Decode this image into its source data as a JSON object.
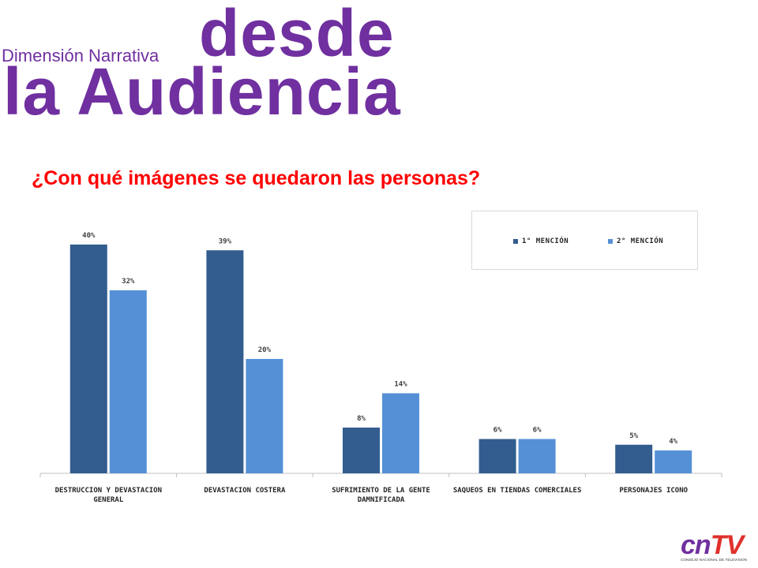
{
  "header": {
    "subtitle": "Dimensión Narrativa",
    "title_line1": "desde",
    "title_line2": "la Audiencia"
  },
  "question": "¿Con qué imágenes se quedaron las personas?",
  "colors": {
    "series1": "#335d8f",
    "series2": "#5590d6",
    "purple": "#7030a0",
    "red": "#ff0000"
  },
  "chart_data": {
    "type": "bar",
    "categories": [
      [
        "DESTRUCCION Y DEVASTACION",
        "GENERAL"
      ],
      [
        "DEVASTACION COSTERA"
      ],
      [
        "SUFRIMIENTO DE LA GENTE",
        "DAMNIFICADA"
      ],
      [
        "SAQUEOS EN TIENDAS COMERCIALES"
      ],
      [
        "PERSONAJES ICONO"
      ]
    ],
    "series": [
      {
        "name": "1° MENCIÓN",
        "values": [
          40,
          39,
          8,
          6,
          5
        ],
        "labels": [
          "40%",
          "39%",
          "8%",
          "6%",
          "5%"
        ]
      },
      {
        "name": "2° MENCIÓN",
        "values": [
          32,
          20,
          14,
          6,
          4
        ],
        "labels": [
          "32%",
          "20%",
          "14%",
          "6%",
          "4%"
        ]
      }
    ],
    "ylim": [
      0,
      40
    ],
    "grid": false,
    "legend_position": "top-right"
  },
  "logo": {
    "text_cn": "cn",
    "text_tv": "TV",
    "tagline": "CONSEJO NACIONAL DE TELEVISION"
  }
}
